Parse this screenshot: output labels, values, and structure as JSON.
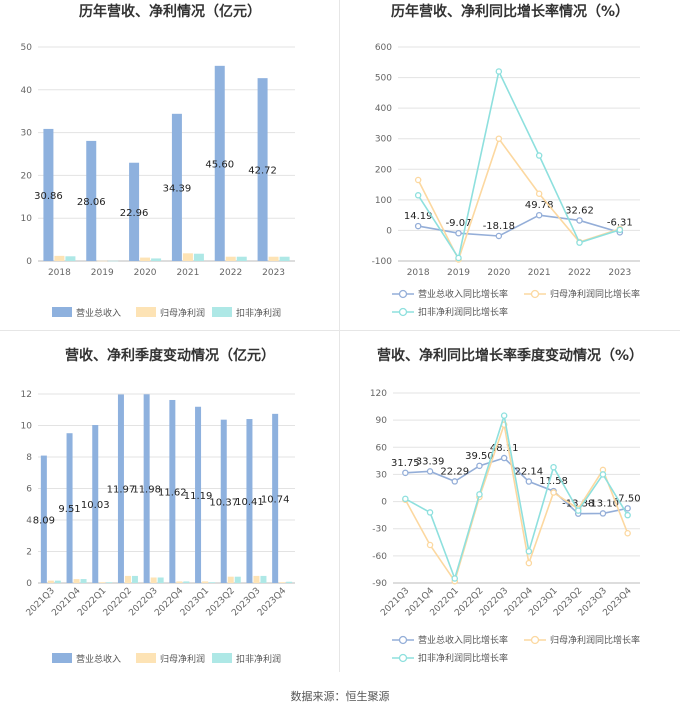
{
  "source_label": "数据来源：恒生聚源",
  "colors": {
    "revenue": "#8eb1de",
    "net_profit": "#fde3b5",
    "deducted": "#aee8e6",
    "line_revenue": "#94aed8",
    "line_net": "#fcd8a0",
    "line_ded": "#8ee0de"
  },
  "chart_data": [
    {
      "id": "annual_amounts",
      "type": "bar",
      "title": "历年营收、净利情况（亿元）",
      "categories": [
        "2018",
        "2019",
        "2020",
        "2021",
        "2022",
        "2023"
      ],
      "ylim": [
        0,
        50
      ],
      "yticks": [
        0,
        10,
        20,
        30,
        40,
        50
      ],
      "series": [
        {
          "name": "营业总收入",
          "values": [
            30.86,
            28.06,
            22.96,
            34.39,
            45.6,
            42.72
          ],
          "labels": [
            "30.86",
            "28.06",
            "22.96",
            "34.39",
            "45.60",
            "42.72"
          ]
        },
        {
          "name": "归母净利润",
          "values": [
            1.2,
            0.05,
            0.8,
            1.8,
            1.0,
            1.0
          ]
        },
        {
          "name": "扣非净利润",
          "values": [
            1.1,
            0.05,
            0.6,
            1.7,
            1.0,
            1.0
          ]
        }
      ],
      "legend": "bottom",
      "grid": true
    },
    {
      "id": "annual_growth",
      "type": "line",
      "title": "历年营收、净利同比增长率情况（%）",
      "categories": [
        "2018",
        "2019",
        "2020",
        "2021",
        "2022",
        "2023"
      ],
      "ylim": [
        -100,
        600
      ],
      "yticks": [
        -100,
        0,
        100,
        200,
        300,
        400,
        500,
        600
      ],
      "series": [
        {
          "name": "营业总收入同比增长率",
          "values": [
            14.19,
            -9.07,
            -18.18,
            49.78,
            32.62,
            -6.31
          ],
          "labels": [
            "14.19",
            "-9.07",
            "-18.18",
            "49.78",
            "32.62",
            "-6.31"
          ]
        },
        {
          "name": "归母净利润同比增长率",
          "values": [
            165,
            -95,
            300,
            120,
            -38,
            5
          ]
        },
        {
          "name": "扣非净利润同比增长率",
          "values": [
            115,
            -90,
            520,
            245,
            -40,
            2
          ]
        }
      ],
      "legend": "bottom",
      "grid": true
    },
    {
      "id": "quarterly_amounts",
      "type": "bar",
      "title": "营收、净利季度变动情况（亿元）",
      "categories": [
        "2021Q3",
        "2021Q4",
        "2022Q1",
        "2022Q2",
        "2022Q3",
        "2022Q4",
        "2023Q1",
        "2023Q2",
        "2023Q3",
        "2023Q4"
      ],
      "ylim": [
        0,
        12
      ],
      "yticks": [
        0,
        2,
        4,
        6,
        8,
        10,
        12
      ],
      "series": [
        {
          "name": "营业总收入",
          "values": [
            8.09,
            9.51,
            10.03,
            11.97,
            11.98,
            11.62,
            11.19,
            10.37,
            10.41,
            10.74
          ],
          "labels": [
            "8.09",
            "9.51",
            "10.03",
            "11.97",
            "11.98",
            "11.62",
            "11.19",
            "10.37",
            "10.41",
            "10.74"
          ]
        },
        {
          "name": "归母净利润",
          "values": [
            0.15,
            0.25,
            0.05,
            0.45,
            0.35,
            0.1,
            0.1,
            0.4,
            0.45,
            0.05
          ]
        },
        {
          "name": "扣非净利润",
          "values": [
            0.15,
            0.25,
            0.05,
            0.45,
            0.35,
            0.1,
            0.05,
            0.4,
            0.45,
            0.08
          ]
        }
      ],
      "legend": "bottom",
      "grid": true
    },
    {
      "id": "quarterly_growth",
      "type": "line",
      "title": "营收、净利同比增长率季度变动情况（%）",
      "categories": [
        "2021Q3",
        "2021Q4",
        "2022Q1",
        "2022Q2",
        "2022Q3",
        "2022Q4",
        "2023Q1",
        "2023Q2",
        "2023Q3",
        "2023Q4"
      ],
      "ylim": [
        -90,
        120
      ],
      "yticks": [
        -90,
        -60,
        -30,
        0,
        30,
        60,
        90,
        120
      ],
      "series": [
        {
          "name": "营业总收入同比增长率",
          "values": [
            31.75,
            33.39,
            22.29,
            39.5,
            48.11,
            22.14,
            11.58,
            -13.38,
            -13.1,
            -7.5
          ],
          "labels": [
            "31.75",
            "33.39",
            "22.29",
            "39.50",
            "48.11",
            "22.14",
            "11.58",
            "-13.38",
            "-13.10",
            "-7.50"
          ]
        },
        {
          "name": "归母净利润同比增长率",
          "values": [
            2,
            -48,
            -88,
            5,
            85,
            -68,
            10,
            -8,
            35,
            -35
          ]
        },
        {
          "name": "扣非净利润同比增长率",
          "values": [
            3,
            -12,
            -85,
            8,
            95,
            -55,
            38,
            -10,
            30,
            -15
          ]
        }
      ],
      "legend": "bottom",
      "grid": true
    }
  ]
}
